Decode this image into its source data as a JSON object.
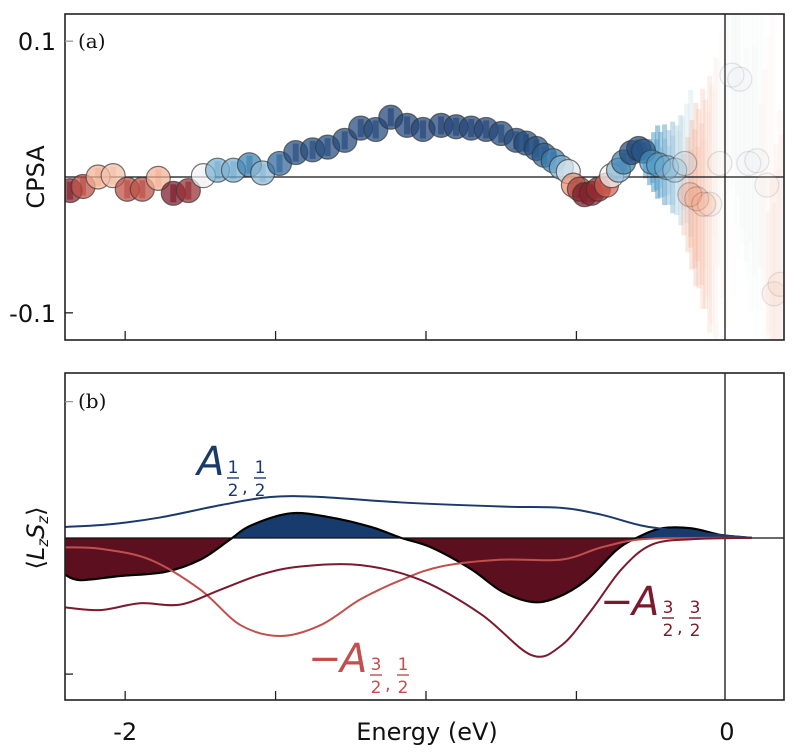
{
  "chart_data": [
    {
      "type": "scatter",
      "panel_label": "(a)",
      "title": "",
      "xlabel": "",
      "ylabel": "CPSA",
      "xlim": [
        -2.2,
        0.19
      ],
      "ylim": [
        -0.12,
        0.12
      ],
      "xticks": [
        -2.0,
        -1.5,
        -1.0,
        -0.5,
        0.0
      ],
      "yticks": [
        0.1,
        -0.1
      ],
      "ytick_labels": [
        "0.1",
        "-0.1"
      ],
      "zero_lines": {
        "horizontal": 0,
        "vertical": 0
      },
      "color_scale": {
        "negative": "#6e0f22",
        "zero": "#f2f2f2",
        "positive": "#1a3a6e"
      },
      "points": [
        {
          "x": -2.183,
          "y": -0.01,
          "c": -0.9,
          "alpha": 0.85
        },
        {
          "x": -2.14,
          "y": -0.007,
          "c": -0.7,
          "alpha": 0.85
        },
        {
          "x": -2.09,
          "y": 0.0,
          "c": -0.25,
          "alpha": 0.85
        },
        {
          "x": -2.04,
          "y": 0.001,
          "c": -0.2,
          "alpha": 0.85
        },
        {
          "x": -1.993,
          "y": -0.009,
          "c": -0.7,
          "alpha": 0.85
        },
        {
          "x": -1.943,
          "y": -0.009,
          "c": -0.7,
          "alpha": 0.85
        },
        {
          "x": -1.89,
          "y": -0.001,
          "c": -0.25,
          "alpha": 0.85
        },
        {
          "x": -1.84,
          "y": -0.012,
          "c": -0.95,
          "alpha": 0.85
        },
        {
          "x": -1.79,
          "y": -0.01,
          "c": -0.85,
          "alpha": 0.85
        },
        {
          "x": -1.74,
          "y": 0.001,
          "c": 0.0,
          "alpha": 0.85
        },
        {
          "x": -1.693,
          "y": 0.005,
          "c": 0.35,
          "alpha": 0.85
        },
        {
          "x": -1.64,
          "y": 0.005,
          "c": 0.35,
          "alpha": 0.85
        },
        {
          "x": -1.587,
          "y": 0.009,
          "c": 0.6,
          "alpha": 0.85
        },
        {
          "x": -1.543,
          "y": 0.003,
          "c": 0.3,
          "alpha": 0.85
        },
        {
          "x": -1.487,
          "y": 0.01,
          "c": 0.75,
          "alpha": 0.85
        },
        {
          "x": -1.433,
          "y": 0.018,
          "c": 0.9,
          "alpha": 0.85
        },
        {
          "x": -1.377,
          "y": 0.02,
          "c": 0.9,
          "alpha": 0.85
        },
        {
          "x": -1.327,
          "y": 0.022,
          "c": 0.9,
          "alpha": 0.85
        },
        {
          "x": -1.27,
          "y": 0.027,
          "c": 0.92,
          "alpha": 0.85
        },
        {
          "x": -1.217,
          "y": 0.036,
          "c": 0.92,
          "alpha": 0.85
        },
        {
          "x": -1.167,
          "y": 0.035,
          "c": 0.92,
          "alpha": 0.85
        },
        {
          "x": -1.117,
          "y": 0.044,
          "c": 0.95,
          "alpha": 0.85
        },
        {
          "x": -1.063,
          "y": 0.038,
          "c": 0.95,
          "alpha": 0.85
        },
        {
          "x": -1.01,
          "y": 0.035,
          "c": 0.95,
          "alpha": 0.85
        },
        {
          "x": -0.95,
          "y": 0.038,
          "c": 0.95,
          "alpha": 0.85
        },
        {
          "x": -0.9,
          "y": 0.037,
          "c": 0.95,
          "alpha": 0.85
        },
        {
          "x": -0.85,
          "y": 0.036,
          "c": 0.95,
          "alpha": 0.85
        },
        {
          "x": -0.8,
          "y": 0.035,
          "c": 0.95,
          "alpha": 0.85
        },
        {
          "x": -0.75,
          "y": 0.032,
          "c": 0.93,
          "alpha": 0.85
        },
        {
          "x": -0.7,
          "y": 0.027,
          "c": 0.92,
          "alpha": 0.85
        },
        {
          "x": -0.667,
          "y": 0.025,
          "c": 0.9,
          "alpha": 0.85
        },
        {
          "x": -0.633,
          "y": 0.021,
          "c": 0.88,
          "alpha": 0.85
        },
        {
          "x": -0.607,
          "y": 0.016,
          "c": 0.8,
          "alpha": 0.85
        },
        {
          "x": -0.577,
          "y": 0.012,
          "c": 0.6,
          "alpha": 0.85
        },
        {
          "x": -0.55,
          "y": 0.007,
          "c": 0.35,
          "alpha": 0.85
        },
        {
          "x": -0.527,
          "y": 0.004,
          "c": 0.05,
          "alpha": 0.85
        },
        {
          "x": -0.51,
          "y": -0.006,
          "c": -0.4,
          "alpha": 0.85
        },
        {
          "x": -0.49,
          "y": -0.009,
          "c": -0.75,
          "alpha": 0.85
        },
        {
          "x": -0.473,
          "y": -0.013,
          "c": -0.95,
          "alpha": 0.85
        },
        {
          "x": -0.45,
          "y": -0.012,
          "c": -0.9,
          "alpha": 0.85
        },
        {
          "x": -0.427,
          "y": -0.009,
          "c": -0.85,
          "alpha": 0.85
        },
        {
          "x": -0.4,
          "y": -0.006,
          "c": -0.6,
          "alpha": 0.85
        },
        {
          "x": -0.383,
          "y": 0.001,
          "c": 0.0,
          "alpha": 0.85
        },
        {
          "x": -0.36,
          "y": 0.005,
          "c": 0.3,
          "alpha": 0.85
        },
        {
          "x": -0.343,
          "y": 0.011,
          "c": 0.6,
          "alpha": 0.85
        },
        {
          "x": -0.317,
          "y": 0.018,
          "c": 0.9,
          "alpha": 0.85
        },
        {
          "x": -0.293,
          "y": 0.021,
          "c": 0.9,
          "alpha": 0.85
        },
        {
          "x": -0.277,
          "y": 0.019,
          "c": 0.85,
          "alpha": 0.8
        },
        {
          "x": -0.25,
          "y": 0.011,
          "c": 0.5,
          "alpha": 0.75,
          "err": 0.02
        },
        {
          "x": -0.227,
          "y": 0.009,
          "c": 0.45,
          "alpha": 0.7,
          "err": 0.022
        },
        {
          "x": -0.2,
          "y": 0.007,
          "c": 0.35,
          "alpha": 0.6,
          "err": 0.025
        },
        {
          "x": -0.173,
          "y": 0.005,
          "c": 0.25,
          "alpha": 0.5,
          "err": 0.03
        },
        {
          "x": -0.14,
          "y": 0.01,
          "c": 0.15,
          "alpha": 0.4,
          "err": 0.04
        },
        {
          "x": -0.123,
          "y": -0.013,
          "c": -0.35,
          "alpha": 0.35,
          "err": 0.05
        },
        {
          "x": -0.1,
          "y": -0.016,
          "c": -0.35,
          "alpha": 0.3,
          "err": 0.06
        },
        {
          "x": -0.077,
          "y": -0.02,
          "c": -0.3,
          "alpha": 0.25,
          "err": 0.07
        },
        {
          "x": -0.057,
          "y": -0.02,
          "c": -0.15,
          "alpha": 0.2,
          "err": 0.08
        },
        {
          "x": -0.023,
          "y": 0.01,
          "c": -0.05,
          "alpha": 0.18,
          "err": 0.09
        },
        {
          "x": 0.017,
          "y": 0.075,
          "c": 0.05,
          "alpha": 0.15,
          "err": 0.1
        },
        {
          "x": 0.043,
          "y": 0.072,
          "c": 0.05,
          "alpha": 0.15,
          "err": 0.1
        },
        {
          "x": 0.073,
          "y": 0.01,
          "c": 0.05,
          "alpha": 0.15,
          "err": 0.1
        },
        {
          "x": 0.1,
          "y": 0.012,
          "c": 0.05,
          "alpha": 0.15,
          "err": 0.1
        },
        {
          "x": 0.133,
          "y": -0.006,
          "c": -0.1,
          "alpha": 0.15,
          "err": 0.1
        },
        {
          "x": 0.157,
          "y": -0.086,
          "c": -0.2,
          "alpha": 0.15,
          "err": 0.1
        },
        {
          "x": 0.177,
          "y": -0.079,
          "c": -0.2,
          "alpha": 0.15,
          "err": 0.1
        }
      ]
    },
    {
      "type": "line",
      "panel_label": "(b)",
      "title": "",
      "xlabel": "Energy (eV)",
      "ylabel": "⟨L_z S_z⟩",
      "xlim": [
        -2.2,
        0.19
      ],
      "ylim": [
        -1.19,
        1.21
      ],
      "xticks": [
        -2.0,
        -1.5,
        -1.0,
        -0.5,
        0.0
      ],
      "xtick_labels": [
        {
          "value": -2.0,
          "label": "-2"
        },
        {
          "value": 0.0,
          "label": "0"
        }
      ],
      "yticks": [
        1.0,
        -1.0
      ],
      "zero_lines": {
        "horizontal": 0,
        "vertical": 0
      },
      "fill": {
        "name": "total",
        "positive_color": "#173b6c",
        "negative_color": "#5c0f1e",
        "x": [
          -2.2,
          -2.15,
          -2.017,
          -1.867,
          -1.75,
          -1.65,
          -1.583,
          -1.45,
          -1.317,
          -1.183,
          -1.083,
          -0.983,
          -0.85,
          -0.75,
          -0.65,
          -0.567,
          -0.467,
          -0.367,
          -0.3,
          -0.217,
          -0.117,
          -0.017,
          0.083
        ],
        "y": [
          -0.27,
          -0.31,
          -0.28,
          -0.25,
          -0.16,
          -0.01,
          0.09,
          0.18,
          0.15,
          0.08,
          0.0,
          -0.07,
          -0.23,
          -0.39,
          -0.47,
          -0.44,
          -0.31,
          -0.09,
          0.0,
          0.07,
          0.07,
          0.02,
          0.0
        ]
      },
      "series": [
        {
          "name": "A_{1/2,1/2}",
          "label_main": "A",
          "label_sub": [
            "1",
            "2",
            "1",
            "2"
          ],
          "sign": "",
          "color": "#1b3a6b",
          "x": [
            -2.2,
            -2.05,
            -1.883,
            -1.683,
            -1.517,
            -1.35,
            -1.083,
            -0.75,
            -0.55,
            -0.417,
            -0.283,
            -0.15,
            -0.017,
            0.083
          ],
          "y": [
            0.08,
            0.1,
            0.15,
            0.24,
            0.3,
            0.3,
            0.26,
            0.23,
            0.22,
            0.17,
            0.09,
            0.05,
            0.02,
            0.0
          ]
        },
        {
          "name": "-A_{3/2,1/2}",
          "label_main": "A",
          "label_sub": [
            "3",
            "2",
            "1",
            "2"
          ],
          "sign": "−",
          "color": "#c0504d",
          "x": [
            -2.2,
            -2.083,
            -1.917,
            -1.75,
            -1.617,
            -1.483,
            -1.35,
            -1.217,
            -1.083,
            -0.95,
            -0.75,
            -0.55,
            -0.417,
            -0.283,
            -0.083,
            0.083
          ],
          "y": [
            -0.07,
            -0.08,
            -0.16,
            -0.38,
            -0.64,
            -0.72,
            -0.64,
            -0.45,
            -0.31,
            -0.21,
            -0.16,
            -0.16,
            -0.07,
            -0.01,
            0.0,
            0.0
          ]
        },
        {
          "name": "-A_{3/2,3/2}",
          "label_main": "A",
          "label_sub": [
            "3",
            "2",
            "3",
            "2"
          ],
          "sign": "−",
          "color": "#7a1a2c",
          "x": [
            -2.2,
            -2.083,
            -1.95,
            -1.817,
            -1.683,
            -1.55,
            -1.417,
            -1.217,
            -1.017,
            -0.817,
            -0.65,
            -0.55,
            -0.45,
            -0.35,
            -0.25,
            -0.117,
            0.083
          ],
          "y": [
            -0.51,
            -0.53,
            -0.48,
            -0.49,
            -0.38,
            -0.27,
            -0.21,
            -0.2,
            -0.31,
            -0.56,
            -0.86,
            -0.79,
            -0.53,
            -0.23,
            -0.05,
            -0.01,
            0.0
          ]
        }
      ]
    }
  ]
}
